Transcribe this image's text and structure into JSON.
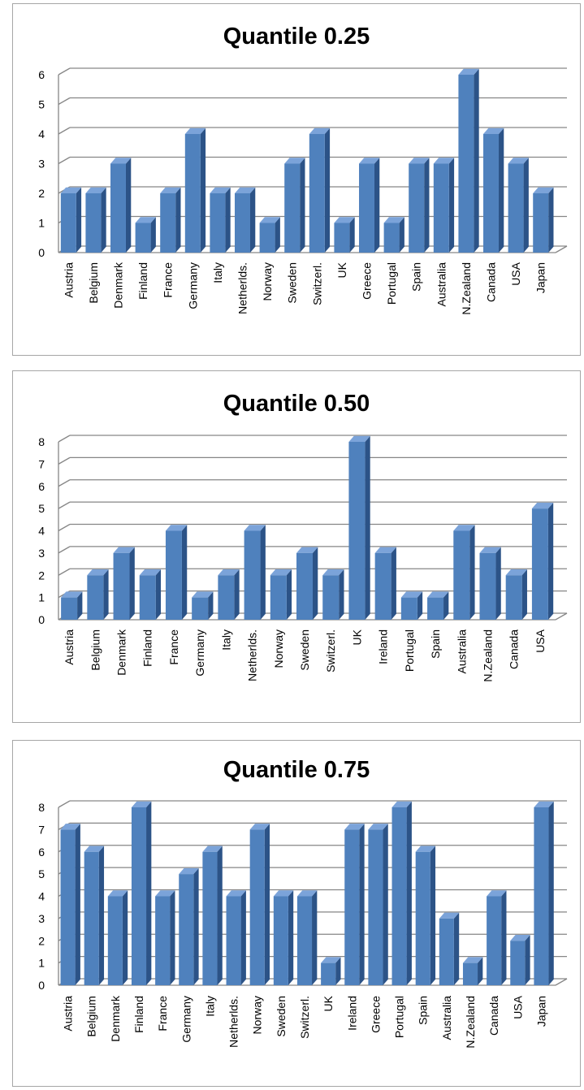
{
  "chart_data": [
    {
      "type": "bar",
      "title": "Quantile 0.25",
      "categories": [
        "Austria",
        "Belgium",
        "Denmark",
        "Finland",
        "France",
        "Germany",
        "Italy",
        "Netherlds.",
        "Norway",
        "Sweden",
        "Switzerl.",
        "UK",
        "Greece",
        "Portugal",
        "Spain",
        "Australia",
        "N.Zealand",
        "Canada",
        "USA",
        "Japan"
      ],
      "values": [
        2,
        2,
        3,
        1,
        2,
        4,
        2,
        2,
        1,
        3,
        4,
        1,
        3,
        1,
        3,
        3,
        6,
        4,
        3,
        2
      ],
      "ylim": [
        0,
        6
      ],
      "yticks": [
        0,
        1,
        2,
        3,
        4,
        5,
        6
      ],
      "grid": true,
      "style": "3d-column"
    },
    {
      "type": "bar",
      "title": "Quantile 0.50",
      "categories": [
        "Austria",
        "Belgium",
        "Denmark",
        "Finland",
        "France",
        "Germany",
        "Italy",
        "Netherlds.",
        "Norway",
        "Sweden",
        "Switzerl.",
        "UK",
        "Ireland",
        "Portugal",
        "Spain",
        "Australia",
        "N.Zealand",
        "Canada",
        "USA"
      ],
      "values": [
        1,
        2,
        3,
        2,
        4,
        1,
        2,
        4,
        2,
        3,
        2,
        8,
        3,
        1,
        1,
        4,
        3,
        2,
        5
      ],
      "ylim": [
        0,
        8
      ],
      "yticks": [
        0,
        1,
        2,
        3,
        4,
        5,
        6,
        7,
        8
      ],
      "grid": true,
      "style": "3d-column"
    },
    {
      "type": "bar",
      "title": "Quantile 0.75",
      "categories": [
        "Austria",
        "Belgium",
        "Denmark",
        "Finland",
        "France",
        "Germany",
        "Italy",
        "Netherlds.",
        "Norway",
        "Sweden",
        "Switzerl.",
        "UK",
        "Ireland",
        "Greece",
        "Portugal",
        "Spain",
        "Australia",
        "N.Zealand",
        "Canada",
        "USA",
        "Japan"
      ],
      "values": [
        7,
        6,
        4,
        8,
        4,
        5,
        6,
        4,
        7,
        4,
        4,
        1,
        7,
        7,
        8,
        6,
        3,
        1,
        4,
        2,
        8
      ],
      "ylim": [
        0,
        8
      ],
      "yticks": [
        0,
        1,
        2,
        3,
        4,
        5,
        6,
        7,
        8
      ],
      "grid": true,
      "style": "3d-column"
    }
  ],
  "colors": {
    "bar_front": "#4f81bd",
    "bar_side": "#2c5387",
    "bar_top": "#7ba3d9",
    "grid": "#868686",
    "axis": "#868686"
  }
}
